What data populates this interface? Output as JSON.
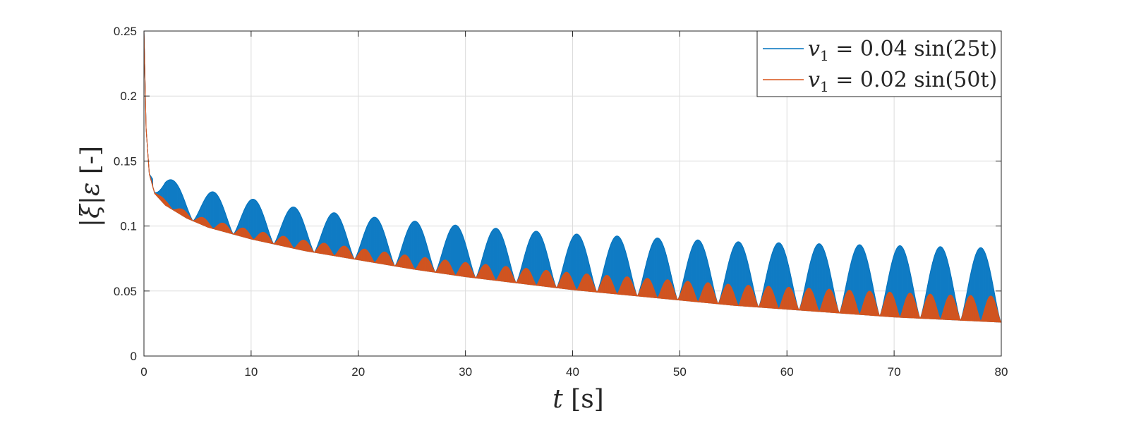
{
  "chart_data": {
    "type": "line",
    "xlabel": "t [s]",
    "ylabel": "|ξ|ε [-]",
    "xlim": [
      0,
      80
    ],
    "ylim": [
      0,
      0.25
    ],
    "xticks": [
      0,
      10,
      20,
      30,
      40,
      50,
      60,
      70,
      80
    ],
    "yticks": [
      0,
      0.05,
      0.1,
      0.15,
      0.2,
      0.25
    ],
    "xtick_labels": [
      "0",
      "10",
      "20",
      "30",
      "40",
      "50",
      "60",
      "70",
      "80"
    ],
    "ytick_labels": [
      "0",
      "0.05",
      "0.1",
      "0.15",
      "0.2",
      "0.25"
    ],
    "grid": true,
    "legend_position": "top-right",
    "series": [
      {
        "name": "v1 = 0.04 sin(25t)",
        "color": "#0072BD",
        "fill_color": "#1f86cf",
        "envelope": {
          "t": [
            0,
            0.2,
            0.5,
            1,
            2,
            4,
            6,
            10,
            15,
            20,
            25,
            30,
            35,
            40,
            45,
            50,
            55,
            60,
            65,
            70,
            75,
            80
          ],
          "floor": [
            0.25,
            0.175,
            0.14,
            0.125,
            0.116,
            0.106,
            0.099,
            0.09,
            0.081,
            0.074,
            0.067,
            0.061,
            0.056,
            0.051,
            0.047,
            0.043,
            0.039,
            0.036,
            0.033,
            0.03,
            0.028,
            0.026
          ],
          "peak": [
            0.25,
            0.175,
            0.14,
            0.134,
            0.138,
            0.13,
            0.127,
            0.121,
            0.113,
            0.108,
            0.104,
            0.1,
            0.097,
            0.094,
            0.092,
            0.09,
            0.088,
            0.087,
            0.086,
            0.085,
            0.084,
            0.083
          ]
        },
        "hump_period": 3.77
      },
      {
        "name": "v1 = 0.02 sin(50t)",
        "color": "#D95319",
        "fill_color": "#d95319",
        "envelope": {
          "t": [
            0,
            0.2,
            0.5,
            1,
            2,
            4,
            6,
            10,
            15,
            20,
            25,
            30,
            35,
            40,
            45,
            50,
            55,
            60,
            65,
            70,
            75,
            80
          ],
          "floor": [
            0.25,
            0.175,
            0.14,
            0.125,
            0.116,
            0.106,
            0.099,
            0.09,
            0.081,
            0.074,
            0.067,
            0.061,
            0.056,
            0.051,
            0.047,
            0.043,
            0.039,
            0.036,
            0.033,
            0.03,
            0.028,
            0.026
          ],
          "peak": [
            0.25,
            0.175,
            0.14,
            0.127,
            0.12,
            0.111,
            0.105,
            0.097,
            0.089,
            0.083,
            0.077,
            0.072,
            0.068,
            0.064,
            0.061,
            0.058,
            0.055,
            0.053,
            0.051,
            0.049,
            0.047,
            0.046
          ]
        },
        "hump_period": 1.885
      }
    ]
  },
  "legend": {
    "entries": [
      {
        "lhs": "v",
        "sub": "1",
        "rhs": " = 0.04 sin(25t)"
      },
      {
        "lhs": "v",
        "sub": "1",
        "rhs": " = 0.02 sin(50t)"
      }
    ]
  },
  "colors": {
    "axis": "#262626",
    "grid": "#dcdcdc"
  }
}
